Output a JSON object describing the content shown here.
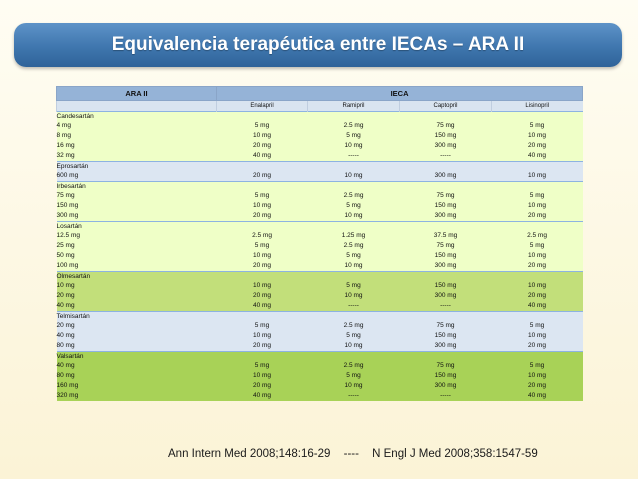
{
  "title": "Equivalencia terapéutica entre IECAs – ARA II",
  "table": {
    "header_left": "ARA II",
    "header_right": "IECA",
    "columns": [
      "Enalapril",
      "Ramipril",
      "Captopril",
      "Lisinopril"
    ],
    "groups": [
      {
        "drug": "Candesartán",
        "rows": [
          {
            "dose": "4 mg",
            "values": [
              "5 mg",
              "2.5 mg",
              "75 mg",
              "5 mg"
            ]
          },
          {
            "dose": "8 mg",
            "values": [
              "10 mg",
              "5 mg",
              "150 mg",
              "10 mg"
            ]
          },
          {
            "dose": "16 mg",
            "values": [
              "20 mg",
              "10 mg",
              "300 mg",
              "20 mg"
            ]
          },
          {
            "dose": "32 mg",
            "values": [
              "40 mg",
              "-----",
              "-----",
              "40 mg"
            ]
          }
        ]
      },
      {
        "drug": "Eprosartán",
        "rows": [
          {
            "dose": "600 mg",
            "values": [
              "20 mg",
              "10 mg",
              "300 mg",
              "10 mg"
            ]
          }
        ]
      },
      {
        "drug": "Irbesartán",
        "rows": [
          {
            "dose": "75 mg",
            "values": [
              "5 mg",
              "2.5 mg",
              "75 mg",
              "5 mg"
            ]
          },
          {
            "dose": "150 mg",
            "values": [
              "10 mg",
              "5 mg",
              "150 mg",
              "10 mg"
            ]
          },
          {
            "dose": "300 mg",
            "values": [
              "20 mg",
              "10 mg",
              "300 mg",
              "20 mg"
            ]
          }
        ]
      },
      {
        "drug": "Losartán",
        "rows": [
          {
            "dose": "12.5 mg",
            "values": [
              "2.5 mg",
              "1.25 mg",
              "37.5 mg",
              "2.5 mg"
            ]
          },
          {
            "dose": "25 mg",
            "values": [
              "5 mg",
              "2.5 mg",
              "75 mg",
              "5 mg"
            ]
          },
          {
            "dose": "50 mg",
            "values": [
              "10 mg",
              "5 mg",
              "150 mg",
              "10 mg"
            ]
          },
          {
            "dose": "100 mg",
            "values": [
              "20 mg",
              "10 mg",
              "300 mg",
              "20 mg"
            ]
          }
        ]
      },
      {
        "drug": "Olmesartán",
        "rows": [
          {
            "dose": "10 mg",
            "values": [
              "10 mg",
              "5 mg",
              "150 mg",
              "10 mg"
            ]
          },
          {
            "dose": "20 mg",
            "values": [
              "20 mg",
              "10 mg",
              "300 mg",
              "20 mg"
            ]
          },
          {
            "dose": "40 mg",
            "values": [
              "40 mg",
              "-----",
              "-----",
              "40 mg"
            ]
          }
        ]
      },
      {
        "drug": "Telmisartán",
        "rows": [
          {
            "dose": "20 mg",
            "values": [
              "5 mg",
              "2.5 mg",
              "75 mg",
              "5 mg"
            ]
          },
          {
            "dose": "40 mg",
            "values": [
              "10 mg",
              "5 mg",
              "150 mg",
              "10 mg"
            ]
          },
          {
            "dose": "80 mg",
            "values": [
              "20 mg",
              "10 mg",
              "300 mg",
              "20 mg"
            ]
          }
        ]
      },
      {
        "drug": "Valsartán",
        "rows": [
          {
            "dose": "40 mg",
            "values": [
              "5 mg",
              "2.5 mg",
              "75 mg",
              "5 mg"
            ]
          },
          {
            "dose": "80 mg",
            "values": [
              "10 mg",
              "5 mg",
              "150 mg",
              "10 mg"
            ]
          },
          {
            "dose": "160 mg",
            "values": [
              "20 mg",
              "10 mg",
              "300 mg",
              "20 mg"
            ]
          },
          {
            "dose": "320 mg",
            "values": [
              "40 mg",
              "-----",
              "-----",
              "40 mg"
            ]
          }
        ]
      }
    ]
  },
  "reference": {
    "left": "Ann Intern Med 2008;148:16-29",
    "sep": "----",
    "right": "N Engl J Med 2008;358:1547-59"
  },
  "colors": {
    "title_bar": "#3f76ae",
    "header": "#95b3d7",
    "row_light_green": "#efffc7",
    "row_blue": "#dce6f2",
    "row_green": "#c2df7a"
  }
}
